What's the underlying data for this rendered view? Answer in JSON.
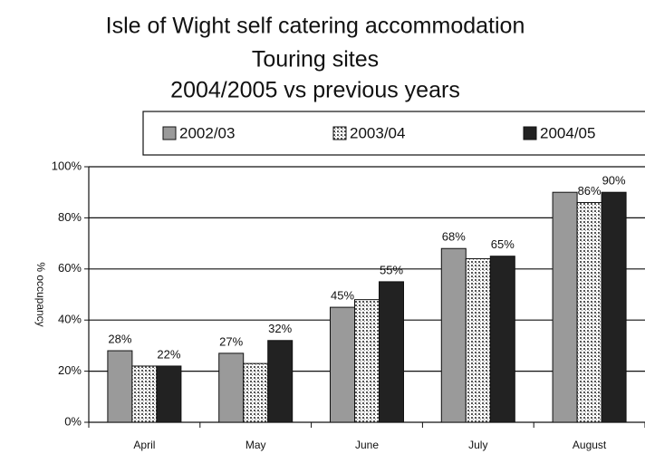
{
  "chart_data": {
    "type": "bar",
    "title_lines": [
      "Isle of Wight self catering accommodation",
      "Touring sites",
      "2004/2005 vs previous years"
    ],
    "y_label": "% occupancy",
    "categories": [
      "April",
      "May",
      "June",
      "July",
      "August"
    ],
    "series": [
      {
        "name": "2002/03",
        "color": "#9a9a9a",
        "values": [
          28,
          27,
          45,
          68,
          90
        ],
        "value_labels": [
          "28%",
          "27%",
          "45%",
          "68%",
          null
        ]
      },
      {
        "name": "2003/04",
        "color": "hatch",
        "values": [
          22,
          23,
          48,
          64,
          86
        ],
        "value_labels": [
          null,
          null,
          null,
          null,
          "86%"
        ]
      },
      {
        "name": "2004/05",
        "color": "#222222",
        "values": [
          22,
          32,
          55,
          65,
          90
        ],
        "value_labels": [
          "22%",
          "32%",
          "55%",
          "65%",
          "90%"
        ]
      }
    ],
    "ylim": [
      0,
      100
    ],
    "yticks": [
      {
        "value": 0,
        "label": "0%"
      },
      {
        "value": 20,
        "label": "20%"
      },
      {
        "value": 40,
        "label": "40%"
      },
      {
        "value": 60,
        "label": "60%"
      },
      {
        "value": 80,
        "label": "80%"
      },
      {
        "value": 100,
        "label": "100%"
      }
    ],
    "grid": true,
    "legend": "top"
  }
}
